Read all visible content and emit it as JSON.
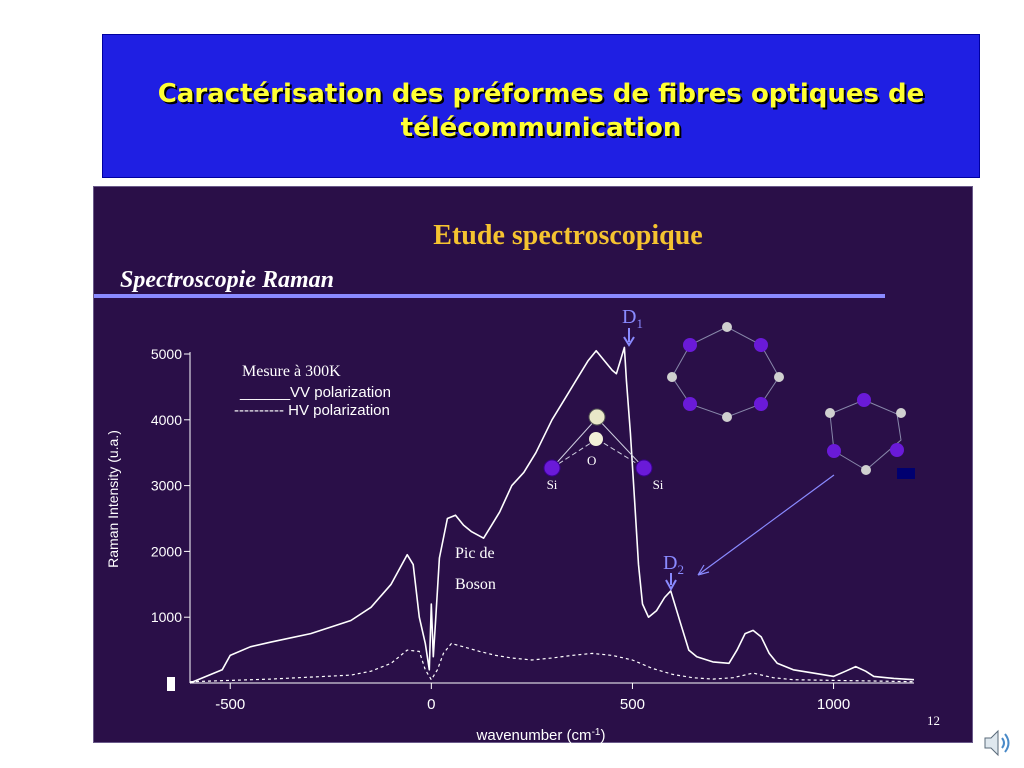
{
  "slide": {
    "title": "Caractérisation des préformes de fibres optiques de télécommunication",
    "heading": "Etude spectroscopique",
    "subheading": "Spectroscopie Raman",
    "page_number": "12"
  },
  "annotations": {
    "measure": "Mesure à 300K",
    "legend_vv": "______VV polarization",
    "legend_hv": "---------- HV polarization",
    "boson_line1": "Pic de",
    "boson_line2": "Boson",
    "d1_letter": "D",
    "d1_sub": "1",
    "d2_letter": "D",
    "d2_sub": "2",
    "o_label": "O",
    "si_left": "Si",
    "si_right": "Si"
  },
  "colors": {
    "title_bg": "#1f1fe3",
    "title_text": "#ffff33",
    "panel_bg": "#2a0f48",
    "heading": "#f5c330",
    "underline": "#8a8aff",
    "curve": "#ffffff",
    "si_atom": "#6a1ad8",
    "o_atom": "#d8d8d0",
    "arrow": "#8a8aff"
  },
  "chart_data": {
    "type": "line",
    "title": "",
    "xlabel": "wavenumber (cm-1)",
    "ylabel": "Raman Intensity (u.a.)",
    "xlim": [
      -600,
      1200
    ],
    "ylim": [
      0,
      5000
    ],
    "xticks": [
      -500,
      0,
      500,
      1000
    ],
    "yticks": [
      1000,
      2000,
      3000,
      4000,
      5000
    ],
    "series": [
      {
        "name": "VV polarization",
        "style": "solid",
        "x": [
          -600,
          -520,
          -500,
          -450,
          -400,
          -300,
          -200,
          -150,
          -100,
          -60,
          -45,
          -30,
          -15,
          -5,
          0,
          5,
          10,
          20,
          40,
          60,
          80,
          100,
          130,
          150,
          170,
          200,
          230,
          260,
          300,
          330,
          360,
          390,
          410,
          430,
          450,
          460,
          470,
          480,
          485,
          495,
          505,
          515,
          525,
          540,
          560,
          580,
          595,
          605,
          620,
          640,
          660,
          700,
          740,
          760,
          780,
          800,
          820,
          840,
          860,
          900,
          950,
          1000,
          1030,
          1055,
          1080,
          1100,
          1150,
          1200
        ],
        "y": [
          0,
          200,
          420,
          550,
          620,
          750,
          950,
          1150,
          1500,
          1950,
          1800,
          1000,
          600,
          200,
          1200,
          400,
          900,
          1900,
          2500,
          2550,
          2400,
          2300,
          2200,
          2400,
          2600,
          3000,
          3200,
          3500,
          4000,
          4300,
          4600,
          4900,
          5050,
          4900,
          4750,
          4700,
          4900,
          5100,
          4600,
          3800,
          2800,
          1800,
          1200,
          1000,
          1100,
          1300,
          1400,
          1200,
          900,
          500,
          400,
          320,
          300,
          500,
          750,
          800,
          700,
          450,
          300,
          200,
          150,
          100,
          180,
          250,
          180,
          100,
          70,
          50
        ]
      },
      {
        "name": "HV polarization",
        "style": "dashed",
        "x": [
          -600,
          -400,
          -200,
          -150,
          -100,
          -60,
          -30,
          -15,
          0,
          15,
          30,
          50,
          80,
          120,
          160,
          200,
          250,
          300,
          350,
          400,
          450,
          500,
          550,
          600,
          650,
          700,
          750,
          800,
          850,
          900,
          1000,
          1100,
          1200
        ],
        "y": [
          20,
          60,
          120,
          180,
          300,
          500,
          480,
          200,
          50,
          200,
          450,
          600,
          550,
          480,
          420,
          380,
          350,
          380,
          420,
          450,
          420,
          350,
          220,
          130,
          80,
          60,
          80,
          150,
          80,
          50,
          40,
          30,
          20
        ]
      }
    ]
  }
}
